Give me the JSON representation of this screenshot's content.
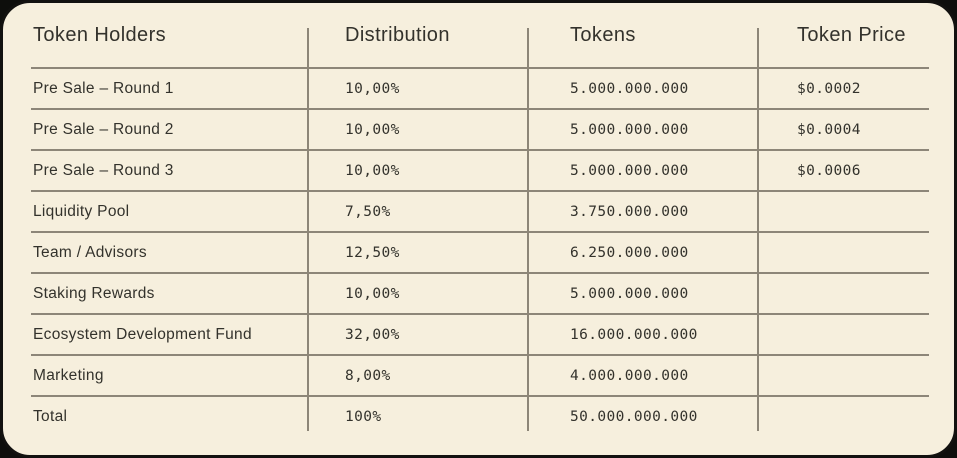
{
  "theme": {
    "card_background": "#f6efdd",
    "outer_background": "#0e0e0c",
    "line_color": "#8d8678",
    "text_color": "#33322c"
  },
  "chart_data": {
    "type": "table",
    "title": "Token Holders",
    "columns": [
      "Token Holders",
      "Distribution",
      "Tokens",
      "Token Price"
    ],
    "rows": [
      {
        "holder": "Pre Sale – Round 1",
        "distribution": "10,00%",
        "tokens": "5.000.000.000",
        "price": "$0.0002"
      },
      {
        "holder": "Pre Sale – Round 2",
        "distribution": "10,00%",
        "tokens": "5.000.000.000",
        "price": "$0.0004"
      },
      {
        "holder": "Pre Sale – Round 3",
        "distribution": "10,00%",
        "tokens": "5.000.000.000",
        "price": "$0.0006"
      },
      {
        "holder": "Liquidity Pool",
        "distribution": "7,50%",
        "tokens": "3.750.000.000",
        "price": ""
      },
      {
        "holder": "Team / Advisors",
        "distribution": "12,50%",
        "tokens": "6.250.000.000",
        "price": ""
      },
      {
        "holder": "Staking Rewards",
        "distribution": "10,00%",
        "tokens": "5.000.000.000",
        "price": ""
      },
      {
        "holder": "Ecosystem Development Fund",
        "distribution": "32,00%",
        "tokens": "16.000.000.000",
        "price": ""
      },
      {
        "holder": "Marketing",
        "distribution": "8,00%",
        "tokens": "4.000.000.000",
        "price": ""
      },
      {
        "holder": "Total",
        "distribution": "100%",
        "tokens": "50.000.000.000",
        "price": ""
      }
    ]
  }
}
